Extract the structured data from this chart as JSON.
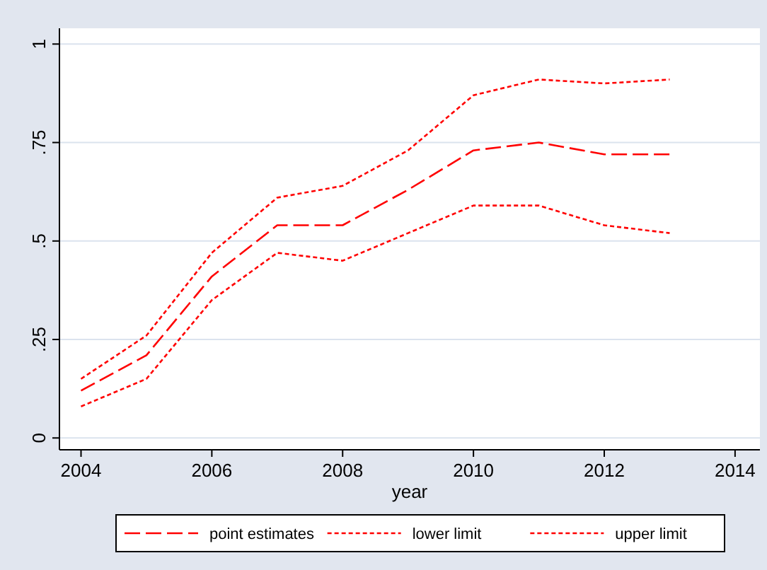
{
  "chart_data": {
    "type": "line",
    "xlabel": "year",
    "x": [
      2004,
      2005,
      2006,
      2007,
      2008,
      2009,
      2010,
      2011,
      2012,
      2013
    ],
    "series": [
      {
        "name": "point estimates",
        "color": "#ff0000",
        "line_style": "dashed",
        "values": [
          0.12,
          0.21,
          0.41,
          0.54,
          0.54,
          0.63,
          0.73,
          0.75,
          0.72,
          0.72
        ]
      },
      {
        "name": "lower limit",
        "color": "#ff0000",
        "line_style": "dotted",
        "values": [
          0.08,
          0.15,
          0.35,
          0.47,
          0.45,
          0.52,
          0.59,
          0.59,
          0.54,
          0.52
        ]
      },
      {
        "name": "upper limit",
        "color": "#ff0000",
        "line_style": "dotted",
        "values": [
          0.15,
          0.26,
          0.47,
          0.61,
          0.64,
          0.73,
          0.87,
          0.91,
          0.9,
          0.91
        ]
      }
    ],
    "xlim": [
      2003.67,
      2014.38
    ],
    "xticks": [
      2004,
      2006,
      2008,
      2010,
      2012,
      2014
    ],
    "ylim": [
      -0.03,
      1.04
    ],
    "yticks": [
      {
        "value": 0,
        "label": "0"
      },
      {
        "value": 0.25,
        "label": ".25"
      },
      {
        "value": 0.5,
        "label": ".5"
      },
      {
        "value": 0.75,
        "label": ".75"
      },
      {
        "value": 1,
        "label": "1"
      }
    ],
    "grid": "y",
    "legend": "bottom",
    "marker": "none"
  }
}
